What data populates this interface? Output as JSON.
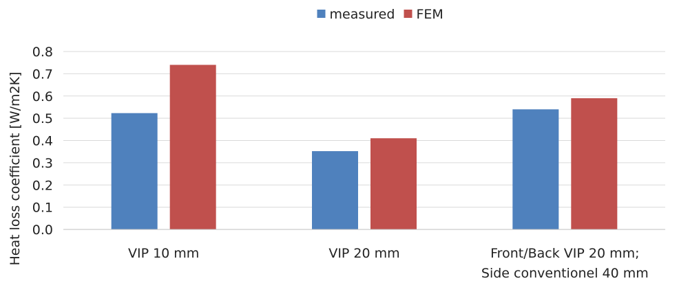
{
  "chart_data": {
    "type": "bar",
    "title": "",
    "xlabel": "",
    "ylabel": "Heat loss coefficient [W/m2K]",
    "ylim": [
      0,
      0.8
    ],
    "yticks": [
      "0.0",
      "0.1",
      "0.2",
      "0.3",
      "0.4",
      "0.5",
      "0.6",
      "0.7",
      "0.8"
    ],
    "categories": [
      [
        "VIP 10 mm"
      ],
      [
        "VIP 20 mm"
      ],
      [
        "Front/Back VIP 20 mm;",
        "Side conventionel 40 mm"
      ]
    ],
    "series": [
      {
        "name": "measured",
        "color": "#4f81bd",
        "values": [
          0.523,
          0.352,
          0.54
        ]
      },
      {
        "name": "FEM",
        "color": "#c0504d",
        "values": [
          0.74,
          0.41,
          0.59
        ]
      }
    ],
    "grid": true,
    "legend_position": "top-center"
  }
}
